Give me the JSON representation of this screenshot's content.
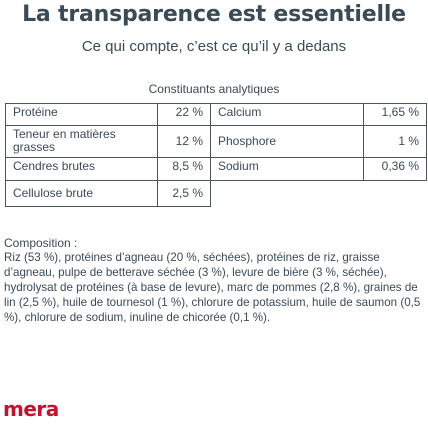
{
  "header": {
    "title": "La transparence est essentielle",
    "subtitle": "Ce qui compte, c’est ce qu’il y a dedans"
  },
  "analytic": {
    "title": "Constituants analytiques",
    "rows": [
      {
        "left_label": "Protéine",
        "left_value": "22 %",
        "right_label": "Calcium",
        "right_value": "1,65 %"
      },
      {
        "left_label": "Teneur en matières grasses",
        "left_value": "12 %",
        "right_label": "Phosphore",
        "right_value": "1 %"
      },
      {
        "left_label": "Cendres brutes",
        "left_value": "8,5 %",
        "right_label": "Sodium",
        "right_value": "0,36 %"
      },
      {
        "left_label": "Cellulose brute",
        "left_value": "2,5 %"
      }
    ]
  },
  "composition": {
    "heading": "Composition :",
    "text": "Riz (53 %), protéines d’agneau (20 %, séchées), protéines de riz, graisse d’agneau, pulpe de betterave séchée (3 %), levure de bière (3 %, séchée), hydrolysat de protéines (à base de levure), marc de pommes (2,8 %), graines de lin (2,5 %), huile de tournesol (1 %), chlorure de potassium, huile de saumon (0,5 %), chlorure de sodium, inuline de chicorée (0,1 %)."
  },
  "brand": {
    "logo_text": "mera",
    "color": "#c8102e"
  }
}
